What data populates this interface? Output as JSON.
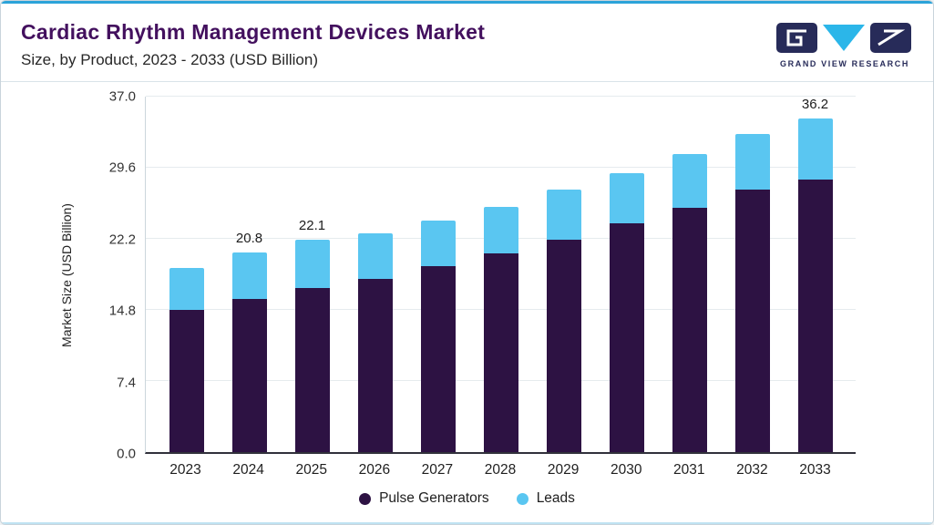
{
  "page": {
    "title": "Cardiac Rhythm Management Devices Market",
    "subtitle": "Size, by Product, 2023 - 2033 (USD Billion)"
  },
  "logo": {
    "brand": "GRAND VIEW RESEARCH"
  },
  "colors": {
    "accent_blue": "#2ba3d9",
    "title_purple": "#43105e",
    "brand_navy": "#272b59",
    "brand_cyan": "#2bb6e9",
    "bar_dark_purple": "#2d1243",
    "bar_light_blue": "#5ac6f1"
  },
  "chart_data": {
    "type": "bar",
    "stacked": true,
    "title": "Cardiac Rhythm Management Devices Market Size, by Product, 2023 - 2033 (USD Billion)",
    "xlabel": "",
    "ylabel": "Market Size (USD Billion)",
    "ylim": [
      0,
      37
    ],
    "yticks": [
      0,
      7.4,
      14.8,
      22.2,
      29.6,
      37
    ],
    "grid": true,
    "legend_position": "bottom",
    "categories": [
      "2023",
      "2024",
      "2025",
      "2026",
      "2027",
      "2028",
      "2029",
      "2030",
      "2031",
      "2032",
      "2033"
    ],
    "series": [
      {
        "name": "Pulse Generators",
        "color": "#2d1243",
        "values": [
          14.8,
          15.9,
          17.1,
          18.0,
          19.4,
          20.7,
          22.1,
          23.8,
          25.4,
          27.3,
          29.6
        ]
      },
      {
        "name": "Leads",
        "color": "#5ac6f1",
        "values": [
          4.4,
          4.9,
          5.0,
          4.8,
          4.7,
          4.8,
          5.2,
          5.2,
          5.6,
          5.8,
          6.6
        ]
      }
    ],
    "totals": [
      19.2,
      20.8,
      22.1,
      22.8,
      24.1,
      25.5,
      27.3,
      29.0,
      31.0,
      33.1,
      36.2
    ],
    "value_labels": [
      "",
      "20.8",
      "22.1",
      "",
      "",
      "",
      "",
      "",
      "",
      "",
      "36.2"
    ]
  }
}
